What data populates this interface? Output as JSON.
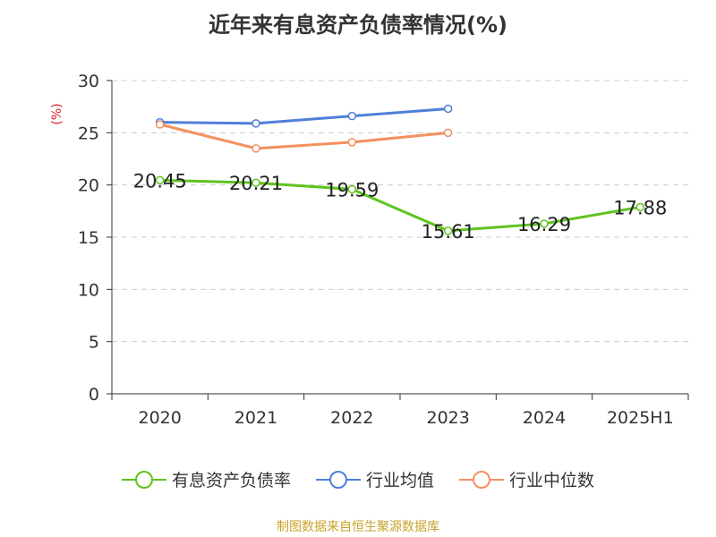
{
  "title": "近年来有息资产负债率情况(%)",
  "source": "制图数据来自恒生聚源数据库",
  "chart_data": {
    "type": "line",
    "title": "近年来有息资产负债率情况(%)",
    "ylabel": "(%)",
    "xlabel": "",
    "categories": [
      "2020",
      "2021",
      "2022",
      "2023",
      "2024",
      "2025H1"
    ],
    "ylim": [
      0,
      30
    ],
    "yticks": [
      0,
      5,
      10,
      15,
      20,
      25,
      30
    ],
    "grid": true,
    "legend": "bottom",
    "series": [
      {
        "name": "有息资产负债率",
        "color": "#5ec41f",
        "values": [
          20.45,
          20.21,
          19.59,
          15.61,
          16.29,
          17.88
        ],
        "labels": [
          "20.45",
          "20.21",
          "19.59",
          "15.61",
          "16.29",
          "17.88"
        ]
      },
      {
        "name": "行业均值",
        "color": "#4f7fd9",
        "values": [
          26.0,
          25.9,
          26.6,
          27.3,
          null,
          null
        ]
      },
      {
        "name": "行业中位数",
        "color": "#f58f5e",
        "values": [
          25.8,
          23.5,
          24.1,
          25.0,
          null,
          null
        ]
      }
    ]
  }
}
